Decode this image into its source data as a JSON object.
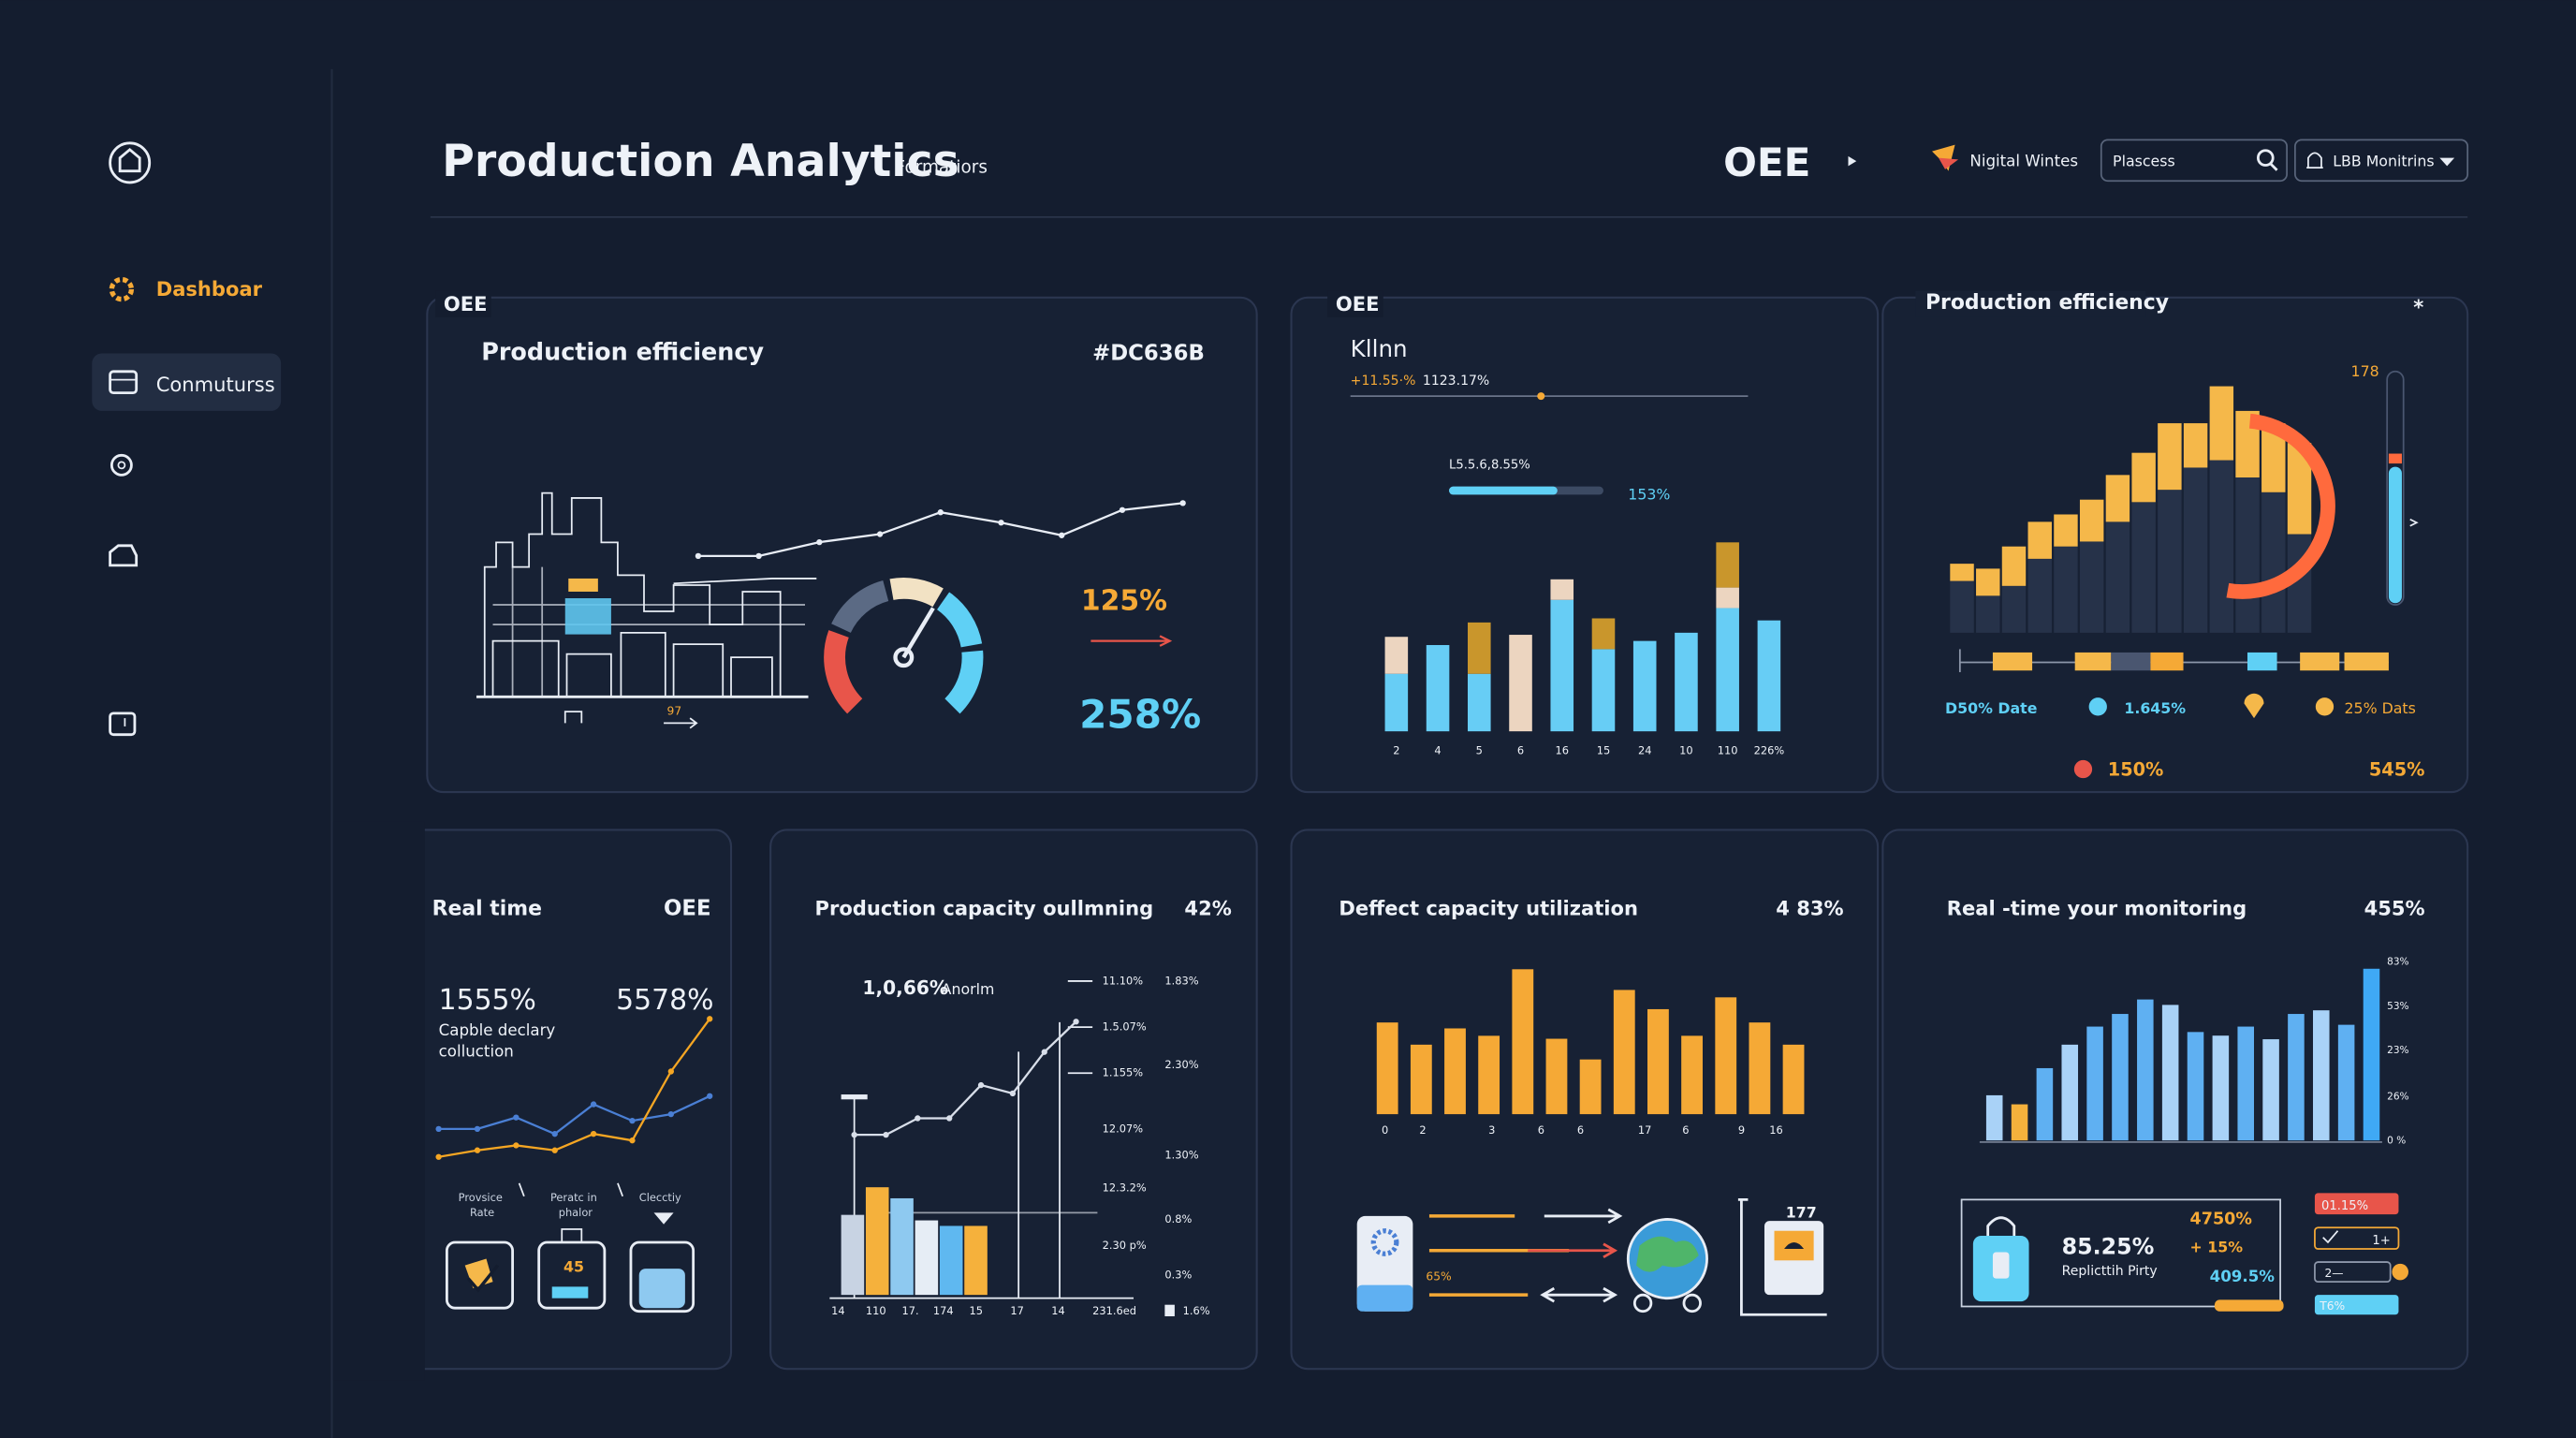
{
  "sidebar": {
    "items": [
      "Dashboar",
      "Conmuturss"
    ]
  },
  "header": {
    "title": "Production Analytics",
    "subtitle": "Formatiors",
    "oee": "OEE",
    "user": "Nigital Wintes",
    "search": "Plascess",
    "dropdown": "LBB Monitrins"
  },
  "cards": [
    {
      "tag": "OEE",
      "title": "Production efficiency",
      "code": "#DC636B",
      "value_a": "125%",
      "value_b": "258%",
      "note": "97",
      "chart_data": {
        "type": "line",
        "series": [
          {
            "color": "#e8edf5",
            "values": [
              31,
              31,
              43,
              50,
              69,
              60,
              49,
              71,
              77
            ]
          }
        ],
        "ylim": [
          0,
          100
        ]
      }
    },
    {
      "tag": "OEE",
      "title": "Kllnn",
      "delta": "+11.55·%",
      "total": "1123.17%",
      "progress_label": "L5.5.6,8.55%",
      "progress_value": "153%",
      "chart_data": {
        "type": "bar",
        "categories": [
          "2",
          "4",
          "5",
          "6",
          "16",
          "15",
          "24",
          "10",
          "110",
          "226%"
        ],
        "series": [
          {
            "color": "#67cdf5",
            "values": [
              28,
              42,
              28,
              null,
              64,
              40,
              44,
              48,
              60,
              54
            ]
          },
          {
            "color": "#ecd5c0",
            "values": [
              18,
              null,
              null,
              47,
              10,
              null,
              null,
              null,
              10,
              null
            ]
          },
          {
            "color": "#c9962c",
            "values": [
              null,
              null,
              25,
              null,
              null,
              15,
              null,
              null,
              22,
              null
            ]
          }
        ],
        "ylim": [
          0,
          100
        ]
      }
    },
    {
      "title": "Production efficiency",
      "mark": "*",
      "peak": "178",
      "legend": [
        "D50% Date",
        "1.645%",
        "25% Dats"
      ],
      "stats": [
        "150%",
        "545%"
      ],
      "chart_data": {
        "type": "bar",
        "series": [
          {
            "color": "#263249",
            "values": [
              21,
              15,
              19,
              30,
              35,
              37,
              45,
              53,
              58,
              67,
              70,
              63,
              57,
              40
            ]
          },
          {
            "color": "#f5b84a",
            "values": [
              7,
              11,
              16,
              15,
              13,
              17,
              19,
              20,
              27,
              18,
              30,
              27,
              28,
              37
            ]
          }
        ],
        "ylim": [
          0,
          100
        ]
      }
    },
    {
      "title": "Real time",
      "tag": "OEE",
      "value_a": "1555%",
      "value_b": "5578%",
      "caption": [
        "Capble declary",
        "colluction"
      ],
      "labels": [
        [
          "Provsice",
          "Rate"
        ],
        [
          "Peratc in",
          "phalor"
        ],
        [
          "Clecctiy"
        ]
      ],
      "badge": "45",
      "chart_data": {
        "type": "line",
        "series": [
          {
            "color": "#4a7fd4",
            "values": [
              23,
              23,
              30,
              20,
              38,
              28,
              32,
              43
            ]
          },
          {
            "color": "#f5a623",
            "values": [
              6,
              10,
              13,
              10,
              20,
              16,
              58,
              90
            ]
          }
        ],
        "ylim": [
          0,
          100
        ]
      }
    },
    {
      "title": "Production capacity oullmning",
      "value": "42%",
      "headline": "1,0,66%",
      "headline_unit": "Anorlm",
      "axis_left": [
        "11.10%",
        "1.5.07%",
        "1.155%",
        "12.07%",
        "12.3.2%",
        "2.30 p%"
      ],
      "axis_right": [
        "1.83%",
        "2.30%",
        "1.30%",
        "0.8%",
        "0.3%",
        "1.6%"
      ],
      "x_labels": [
        "14",
        "110",
        "17.",
        "174",
        "15",
        "17",
        "14",
        "231.6ed"
      ],
      "chart_data": [
        {
          "type": "bar",
          "series": [
            {
              "colors": [
                "#c8d3e3",
                "#f5b13c",
                "#8ec9f0",
                "#e6edf5",
                "#5fb8f0",
                "#f5b13c"
              ],
              "values": [
                29,
                39,
                35,
                27,
                25,
                25
              ]
            }
          ],
          "ylim": [
            0,
            100
          ]
        },
        {
          "type": "line",
          "series": [
            {
              "color": "#d8dee9",
              "values": [
                58,
                58,
                64,
                64,
                76,
                73,
                88,
                99
              ]
            }
          ],
          "ylim": [
            0,
            100
          ]
        }
      ]
    },
    {
      "title": "Deffect capacity utilization",
      "value": "4 83%",
      "x_labels": [
        "0",
        "2",
        "3",
        "6",
        "6",
        "17",
        "6",
        "9",
        "16"
      ],
      "device_label": "177",
      "flow_label": "65%",
      "chart_data": {
        "type": "bar",
        "series": [
          {
            "color": "#f5a936",
            "values": [
              62,
              47,
              58,
              53,
              98,
              51,
              37,
              84,
              71,
              53,
              79,
              62,
              47
            ]
          }
        ],
        "ylim": [
          0,
          100
        ]
      }
    },
    {
      "title": "Real -time your monitoring",
      "value": "455%",
      "axis_labels": [
        "83%",
        "53%",
        "23%",
        "26%",
        "0 %"
      ],
      "kpi": "85.25%",
      "kpi_label": "Replicttih Pirty",
      "side": [
        "4750%",
        "+ 15%",
        "409.5%"
      ],
      "pills": [
        "01.15%",
        "1+",
        "2—",
        "T6%"
      ],
      "chart_data": {
        "type": "bar",
        "series": [
          {
            "colors": [
              "#a9d2f7",
              "#f5b13c",
              "#5fb0f2",
              "#a9d2f7",
              "#5fb0f2",
              "#5fb0f2",
              "#5fb0f2",
              "#a9d2f7",
              "#5fb0f2",
              "#a9d2f7",
              "#5fb0f2",
              "#a9d2f7",
              "#5fb0f2",
              "#a9d2f7",
              "#5fb0f2",
              "#3fa9f5"
            ],
            "values": [
              25,
              20,
              40,
              53,
              63,
              70,
              78,
              75,
              60,
              58,
              63,
              56,
              70,
              72,
              64,
              95
            ]
          }
        ],
        "ylim": [
          0,
          100
        ]
      }
    }
  ]
}
